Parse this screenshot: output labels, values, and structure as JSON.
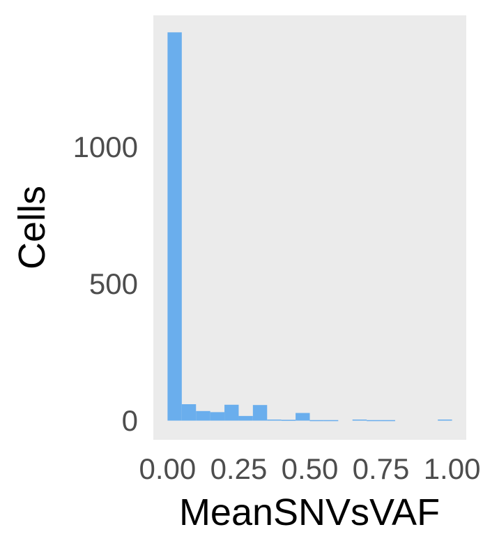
{
  "chart_data": {
    "type": "bar",
    "title": "",
    "xlabel": "MeanSNVsVAF",
    "ylabel": "Cells",
    "x_ticks": [
      {
        "value": 0.0,
        "label": "0.00"
      },
      {
        "value": 0.25,
        "label": "0.25"
      },
      {
        "value": 0.5,
        "label": "0.50"
      },
      {
        "value": 0.75,
        "label": "0.75"
      },
      {
        "value": 1.0,
        "label": "1.00"
      }
    ],
    "y_ticks": [
      {
        "value": 0,
        "label": "0"
      },
      {
        "value": 500,
        "label": "500"
      },
      {
        "value": 1000,
        "label": "1000"
      }
    ],
    "xlim": [
      -0.05,
      1.05
    ],
    "ylim": [
      -70,
      1480
    ],
    "bin_width": 0.05,
    "bins_start": [
      0.0,
      0.05,
      0.1,
      0.15,
      0.2,
      0.25,
      0.3,
      0.35,
      0.4,
      0.45,
      0.5,
      0.55,
      0.6,
      0.65,
      0.7,
      0.75,
      0.8,
      0.85,
      0.9,
      0.95
    ],
    "values": [
      1418,
      60,
      35,
      31,
      58,
      17,
      57,
      4,
      3,
      28,
      2,
      2,
      0,
      4,
      2,
      2,
      0,
      0,
      0,
      4
    ],
    "bar_color": "#6aaeed",
    "panel_color": "#ebebeb",
    "grid": false
  }
}
